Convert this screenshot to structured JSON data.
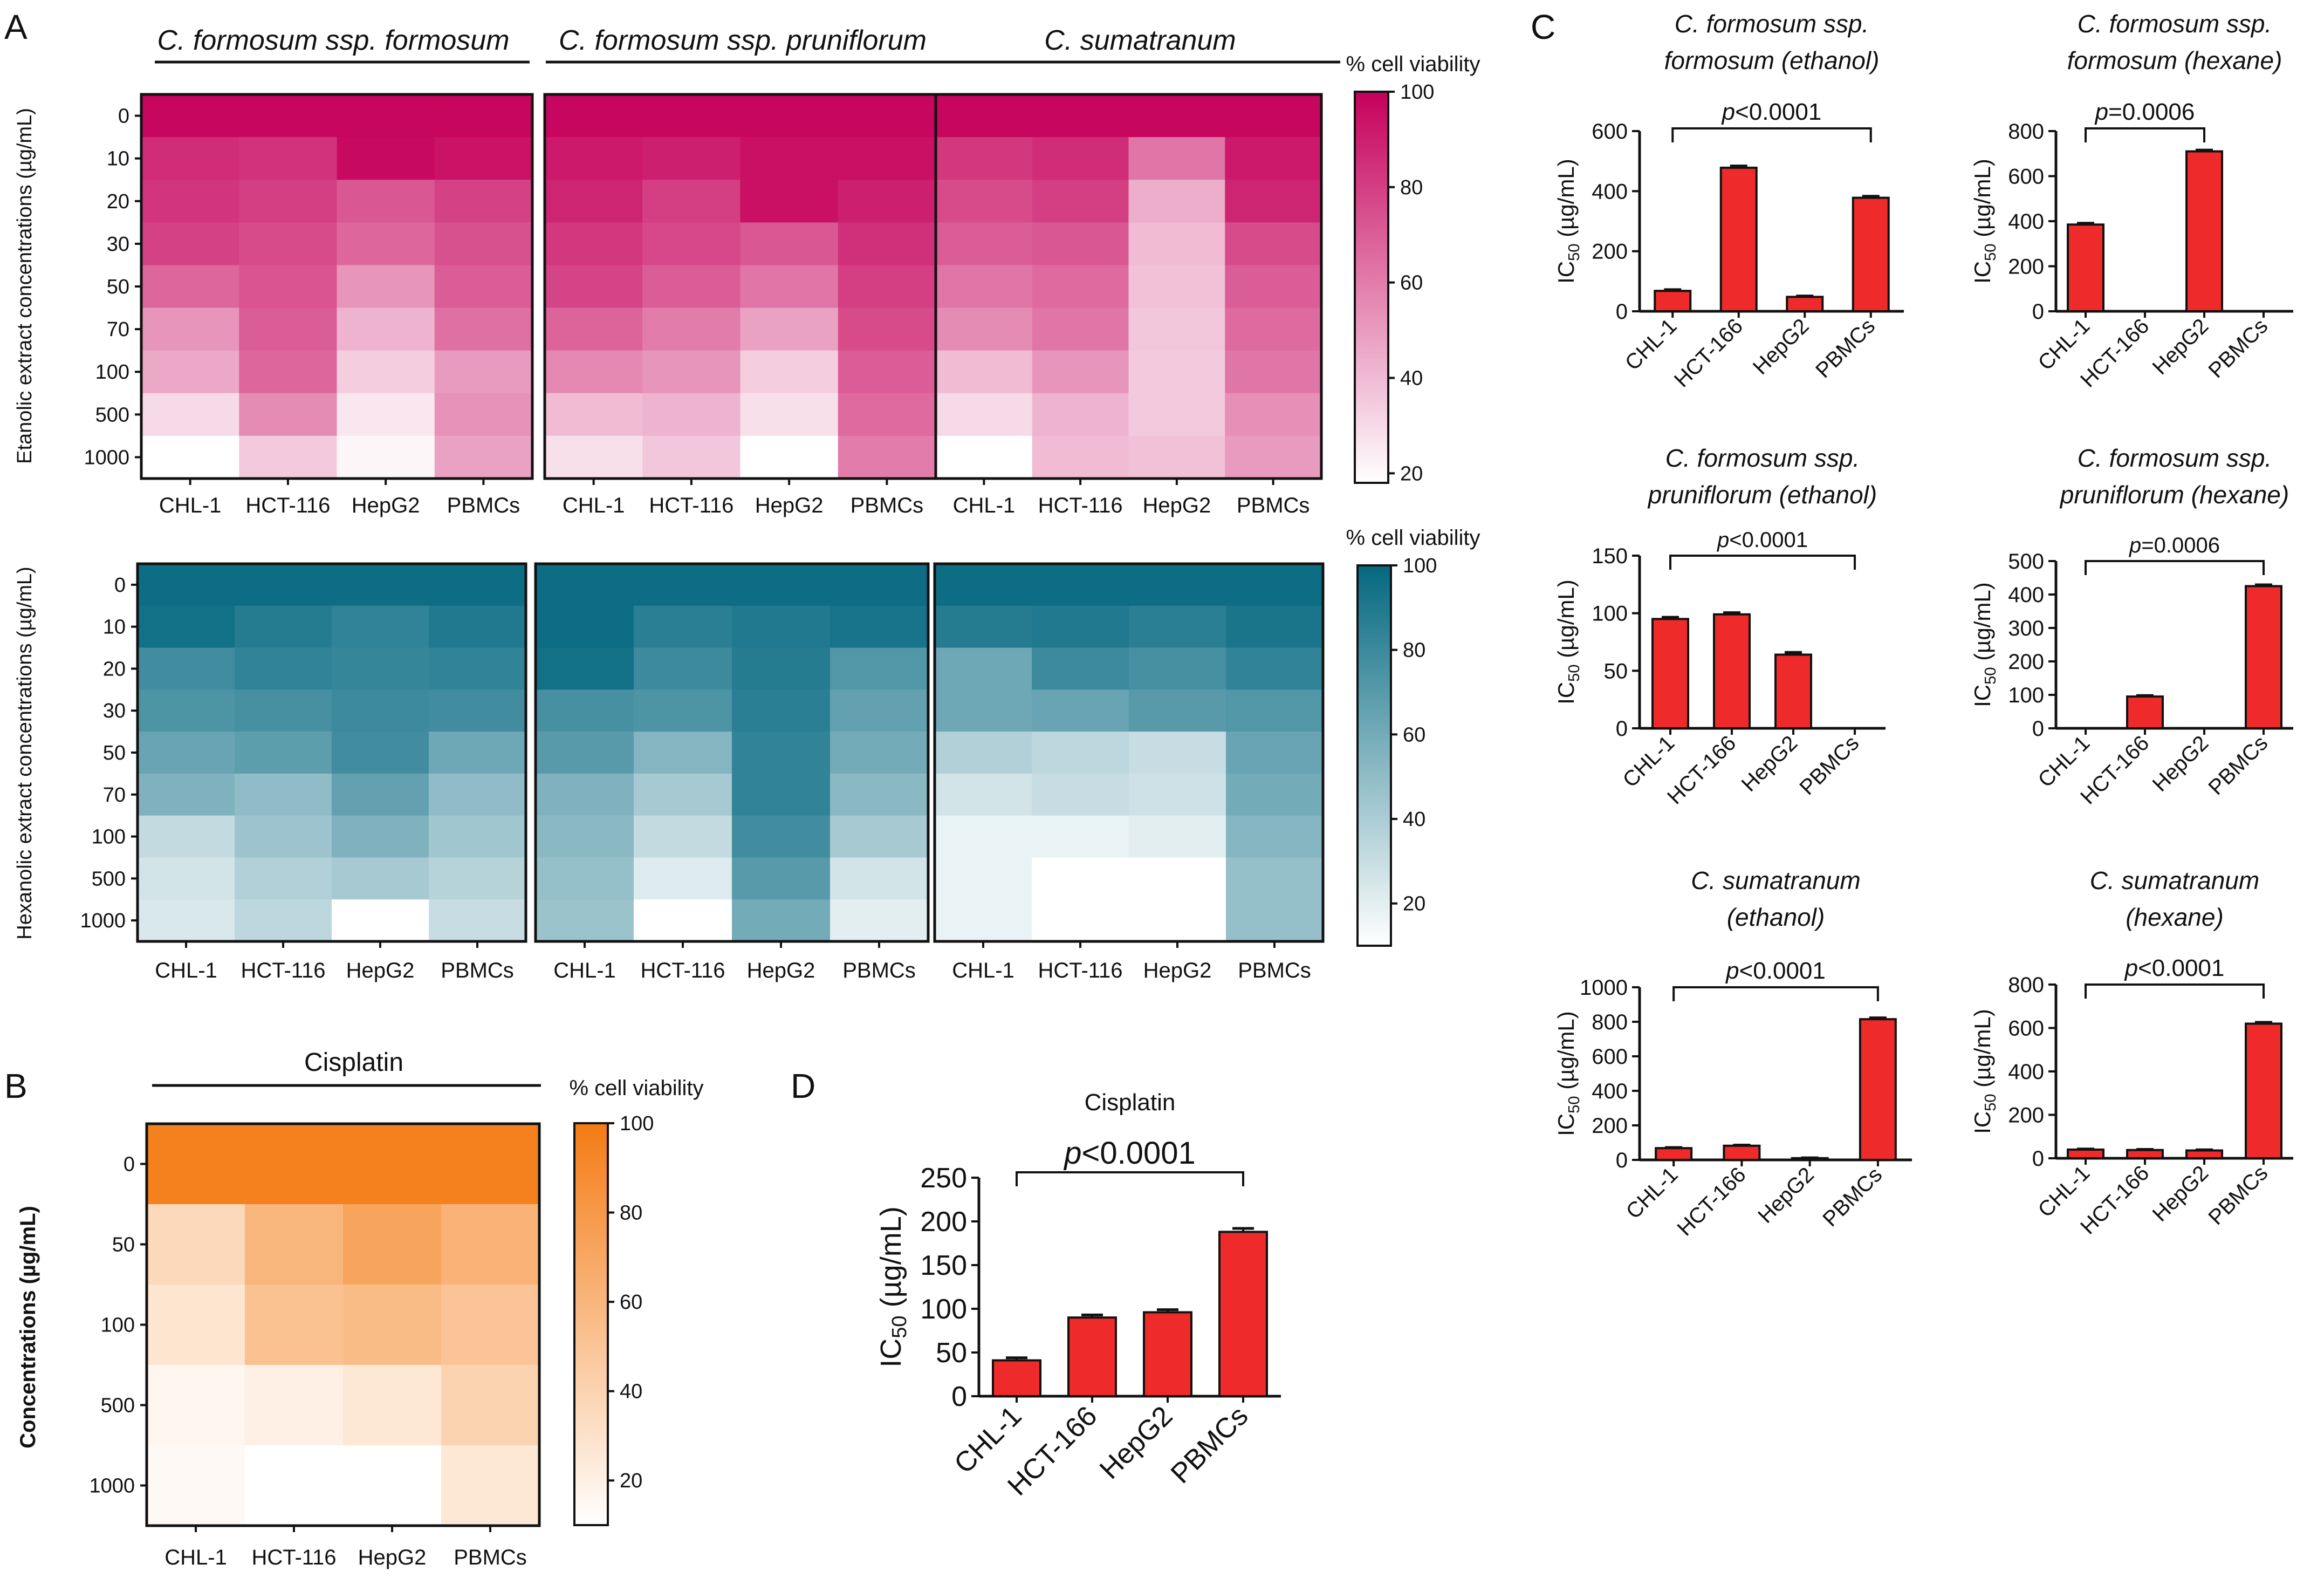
{
  "panels": {
    "A": {
      "letter": "A",
      "species": [
        "C. formosum ssp. formosum",
        "C. formosum ssp. pruniflorum",
        "C. sumatranum"
      ],
      "cells": [
        "CHL-1",
        "HCT-116",
        "HepG2",
        "PBMCs"
      ],
      "concentrations": [
        "0",
        "10",
        "20",
        "30",
        "50",
        "70",
        "100",
        "500",
        "1000"
      ],
      "colorbar_title": "% cell viability",
      "ethanol": {
        "ylabel": "Etanolic extract concentrations (µg/mL)",
        "low_color": "#ffffff",
        "high_color": "#c6005b",
        "colorbar_ticks": [
          "100",
          "80",
          "60",
          "40",
          "20"
        ],
        "colorbar_range": [
          18,
          100
        ]
      },
      "hexane": {
        "ylabel": "Hexanolic extract concentrations (µg/mL)",
        "low_color": "#ffffff",
        "high_color": "#046880",
        "colorbar_ticks": [
          "100",
          "80",
          "60",
          "40",
          "20"
        ],
        "colorbar_range": [
          10,
          100
        ]
      }
    },
    "B": {
      "letter": "B",
      "title": "Cisplatin",
      "ylabel": "Concentrations (µg/mL)",
      "colorbar_title": "% cell viability",
      "low_color": "#ffffff",
      "high_color": "#f47b14",
      "colorbar_ticks": [
        "100",
        "80",
        "60",
        "40",
        "20"
      ],
      "colorbar_range": [
        10,
        100
      ]
    },
    "C": {
      "letter": "C"
    },
    "D": {
      "letter": "D",
      "title": "Cisplatin"
    }
  },
  "chart_data": [
    {
      "id": "A-ethanol-formosum",
      "type": "heatmap",
      "title": "C. formosum ssp. formosum",
      "xlabel": "",
      "ylabel": "Etanolic extract concentrations (µg/mL)",
      "categories": [
        "CHL-1",
        "HCT-116",
        "HepG2",
        "PBMCs"
      ],
      "rows": [
        "0",
        "10",
        "20",
        "30",
        "50",
        "70",
        "100",
        "500",
        "1000"
      ],
      "values": [
        [
          98,
          98,
          98,
          98
        ],
        [
          86,
          84,
          97,
          94
        ],
        [
          83,
          80,
          72,
          79
        ],
        [
          79,
          76,
          67,
          74
        ],
        [
          67,
          73,
          52,
          70
        ],
        [
          52,
          70,
          42,
          64
        ],
        [
          46,
          67,
          34,
          50
        ],
        [
          30,
          55,
          26,
          53
        ],
        [
          18,
          35,
          21,
          48
        ]
      ]
    },
    {
      "id": "A-ethanol-pruniflorum",
      "type": "heatmap",
      "title": "C. formosum ssp. pruniflorum",
      "xlabel": "",
      "ylabel": "",
      "categories": [
        "CHL-1",
        "HCT-116",
        "HepG2",
        "PBMCs"
      ],
      "rows": [
        "0",
        "10",
        "20",
        "30",
        "50",
        "70",
        "100",
        "500",
        "1000"
      ],
      "values": [
        [
          98,
          98,
          98,
          98
        ],
        [
          92,
          90,
          95,
          95
        ],
        [
          88,
          80,
          95,
          90
        ],
        [
          82,
          77,
          72,
          85
        ],
        [
          78,
          70,
          62,
          80
        ],
        [
          68,
          60,
          48,
          76
        ],
        [
          56,
          52,
          34,
          70
        ],
        [
          40,
          42,
          28,
          66
        ],
        [
          28,
          36,
          18,
          60
        ]
      ]
    },
    {
      "id": "A-ethanol-sumatranum",
      "type": "heatmap",
      "title": "C. sumatranum",
      "xlabel": "",
      "ylabel": "",
      "categories": [
        "CHL-1",
        "HCT-116",
        "HepG2",
        "PBMCs"
      ],
      "rows": [
        "0",
        "10",
        "20",
        "30",
        "50",
        "70",
        "100",
        "500",
        "1000"
      ],
      "values": [
        [
          98,
          98,
          98,
          98
        ],
        [
          82,
          86,
          62,
          92
        ],
        [
          76,
          80,
          44,
          88
        ],
        [
          70,
          72,
          40,
          76
        ],
        [
          62,
          66,
          38,
          70
        ],
        [
          55,
          62,
          36,
          66
        ],
        [
          40,
          52,
          35,
          62
        ],
        [
          30,
          42,
          35,
          54
        ],
        [
          18,
          40,
          38,
          50
        ]
      ]
    },
    {
      "id": "A-hexane-formosum",
      "type": "heatmap",
      "title": "C. formosum ssp. formosum",
      "xlabel": "",
      "ylabel": "Hexanolic extract concentrations (µg/mL)",
      "categories": [
        "CHL-1",
        "HCT-116",
        "HepG2",
        "PBMCs"
      ],
      "rows": [
        "0",
        "10",
        "20",
        "30",
        "50",
        "70",
        "100",
        "500",
        "1000"
      ],
      "values": [
        [
          97,
          97,
          97,
          97
        ],
        [
          95,
          88,
          84,
          90
        ],
        [
          78,
          84,
          82,
          84
        ],
        [
          74,
          76,
          80,
          78
        ],
        [
          64,
          68,
          78,
          62
        ],
        [
          56,
          50,
          66,
          50
        ],
        [
          32,
          45,
          56,
          44
        ],
        [
          26,
          38,
          42,
          36
        ],
        [
          24,
          34,
          10,
          30
        ]
      ]
    },
    {
      "id": "A-hexane-pruniflorum",
      "type": "heatmap",
      "title": "C. formosum ssp. pruniflorum",
      "xlabel": "",
      "ylabel": "",
      "categories": [
        "CHL-1",
        "HCT-116",
        "HepG2",
        "PBMCs"
      ],
      "rows": [
        "0",
        "10",
        "20",
        "30",
        "50",
        "70",
        "100",
        "500",
        "1000"
      ],
      "values": [
        [
          97,
          97,
          97,
          97
        ],
        [
          97,
          86,
          90,
          93
        ],
        [
          95,
          80,
          88,
          72
        ],
        [
          76,
          74,
          86,
          66
        ],
        [
          70,
          54,
          84,
          60
        ],
        [
          56,
          42,
          84,
          52
        ],
        [
          52,
          32,
          78,
          42
        ],
        [
          48,
          22,
          70,
          26
        ],
        [
          46,
          10,
          60,
          20
        ]
      ]
    },
    {
      "id": "A-hexane-sumatranum",
      "type": "heatmap",
      "title": "C. sumatranum",
      "xlabel": "",
      "ylabel": "",
      "categories": [
        "CHL-1",
        "HCT-116",
        "HepG2",
        "PBMCs"
      ],
      "rows": [
        "0",
        "10",
        "20",
        "30",
        "50",
        "70",
        "100",
        "500",
        "1000"
      ],
      "values": [
        [
          97,
          97,
          97,
          97
        ],
        [
          88,
          90,
          86,
          92
        ],
        [
          62,
          80,
          76,
          84
        ],
        [
          62,
          64,
          70,
          72
        ],
        [
          38,
          34,
          30,
          64
        ],
        [
          26,
          30,
          28,
          60
        ],
        [
          18,
          18,
          20,
          54
        ],
        [
          18,
          10,
          10,
          48
        ],
        [
          18,
          10,
          10,
          48
        ]
      ]
    },
    {
      "id": "B-cisplatin",
      "type": "heatmap",
      "title": "Cisplatin",
      "xlabel": "",
      "ylabel": "Concentrations (µg/mL)",
      "categories": [
        "CHL-1",
        "HCT-116",
        "HepG2",
        "PBMCs"
      ],
      "rows": [
        "0",
        "50",
        "100",
        "500",
        "1000"
      ],
      "values": [
        [
          96,
          96,
          96,
          96
        ],
        [
          36,
          60,
          72,
          62
        ],
        [
          28,
          52,
          56,
          50
        ],
        [
          16,
          20,
          26,
          40
        ],
        [
          14,
          10,
          10,
          26
        ]
      ]
    },
    {
      "id": "C-formosum-ethanol",
      "type": "bar",
      "title_lines": [
        "C. formosum ssp.",
        "formosum (ethanol)"
      ],
      "title": "C. formosum ssp. formosum (ethanol)",
      "categories": [
        "CHL-1",
        "HCT-166",
        "HepG2",
        "PBMCs"
      ],
      "values": [
        68,
        478,
        48,
        378
      ],
      "errors": [
        4,
        6,
        3,
        5
      ],
      "ylabel": "IC50 (µg/mL)",
      "ylim": [
        0,
        600
      ],
      "yticks": [
        0,
        200,
        400,
        600
      ],
      "pvalue": "p<0.0001",
      "bracket": [
        0,
        3
      ]
    },
    {
      "id": "C-formosum-hexane",
      "type": "bar",
      "title_lines": [
        "C. formosum ssp.",
        "formosum (hexane)"
      ],
      "title": "C. formosum ssp. formosum (hexane)",
      "categories": [
        "CHL-1",
        "HCT-166",
        "HepG2",
        "PBMCs"
      ],
      "values": [
        385,
        0,
        710,
        0
      ],
      "errors": [
        6,
        0,
        6,
        0
      ],
      "ylabel": "IC50 (µg/mL)",
      "ylim": [
        0,
        800
      ],
      "yticks": [
        0,
        200,
        400,
        600,
        800
      ],
      "pvalue": "p=0.0006",
      "bracket": [
        0,
        2
      ]
    },
    {
      "id": "C-pruniflorum-ethanol",
      "type": "bar",
      "title_lines": [
        "C. formosum ssp.",
        "pruniflorum (ethanol)"
      ],
      "title": "C. formosum ssp. pruniflorum (ethanol)",
      "categories": [
        "CHL-1",
        "HCT-166",
        "HepG2",
        "PBMCs"
      ],
      "values": [
        95,
        99,
        64,
        0
      ],
      "errors": [
        1.5,
        1.5,
        2,
        0
      ],
      "ylabel": "IC50 (µg/mL)",
      "ylim": [
        0,
        150
      ],
      "yticks": [
        0,
        50,
        100,
        150
      ],
      "pvalue": "p<0.0001",
      "bracket": [
        0,
        3
      ]
    },
    {
      "id": "C-pruniflorum-hexane",
      "type": "bar",
      "title_lines": [
        "C. formosum ssp.",
        "pruniflorum (hexane)"
      ],
      "title": "C. formosum ssp. pruniflorum (hexane)",
      "categories": [
        "CHL-1",
        "HCT-166",
        "HepG2",
        "PBMCs"
      ],
      "values": [
        0,
        95,
        0,
        425
      ],
      "errors": [
        0,
        3,
        0,
        4
      ],
      "ylabel": "IC50 (µg/mL)",
      "ylim": [
        0,
        500
      ],
      "yticks": [
        0,
        100,
        200,
        300,
        400,
        500
      ],
      "pvalue": "p=0.0006",
      "bracket": [
        0,
        3
      ]
    },
    {
      "id": "C-sumatranum-ethanol",
      "type": "bar",
      "title_lines": [
        "C. sumatranum",
        "(ethanol)"
      ],
      "title": "C. sumatranum (ethanol)",
      "categories": [
        "CHL-1",
        "HCT-166",
        "HepG2",
        "PBMCs"
      ],
      "values": [
        68,
        82,
        10,
        815
      ],
      "errors": [
        4,
        4,
        2,
        8
      ],
      "ylabel": "IC50 (µg/mL)",
      "ylim": [
        0,
        1000
      ],
      "yticks": [
        0,
        200,
        400,
        600,
        800,
        1000
      ],
      "pvalue": "p<0.0001",
      "bracket": [
        0,
        3
      ]
    },
    {
      "id": "C-sumatranum-hexane",
      "type": "bar",
      "title_lines": [
        "C. sumatranum",
        "(hexane)"
      ],
      "title": "C. sumatranum (hexane)",
      "categories": [
        "CHL-1",
        "HCT-166",
        "HepG2",
        "PBMCs"
      ],
      "values": [
        40,
        38,
        36,
        620
      ],
      "errors": [
        3,
        3,
        3,
        6
      ],
      "ylabel": "IC50 (µg/mL)",
      "ylim": [
        0,
        800
      ],
      "yticks": [
        0,
        200,
        400,
        600,
        800
      ],
      "pvalue": "p<0.0001",
      "bracket": [
        0,
        3
      ]
    },
    {
      "id": "D-cisplatin",
      "type": "bar",
      "title_lines": [
        "Cisplatin"
      ],
      "title": "Cisplatin",
      "categories": [
        "CHL-1",
        "HCT-166",
        "HepG2",
        "PBMCs"
      ],
      "values": [
        41,
        90,
        96,
        188
      ],
      "errors": [
        3,
        3,
        3,
        4
      ],
      "ylabel": "IC50 (µg/mL)",
      "ylim": [
        0,
        250
      ],
      "yticks": [
        0,
        50,
        100,
        150,
        200,
        250
      ],
      "pvalue": "p<0.0001",
      "bracket": [
        0,
        3
      ]
    }
  ]
}
